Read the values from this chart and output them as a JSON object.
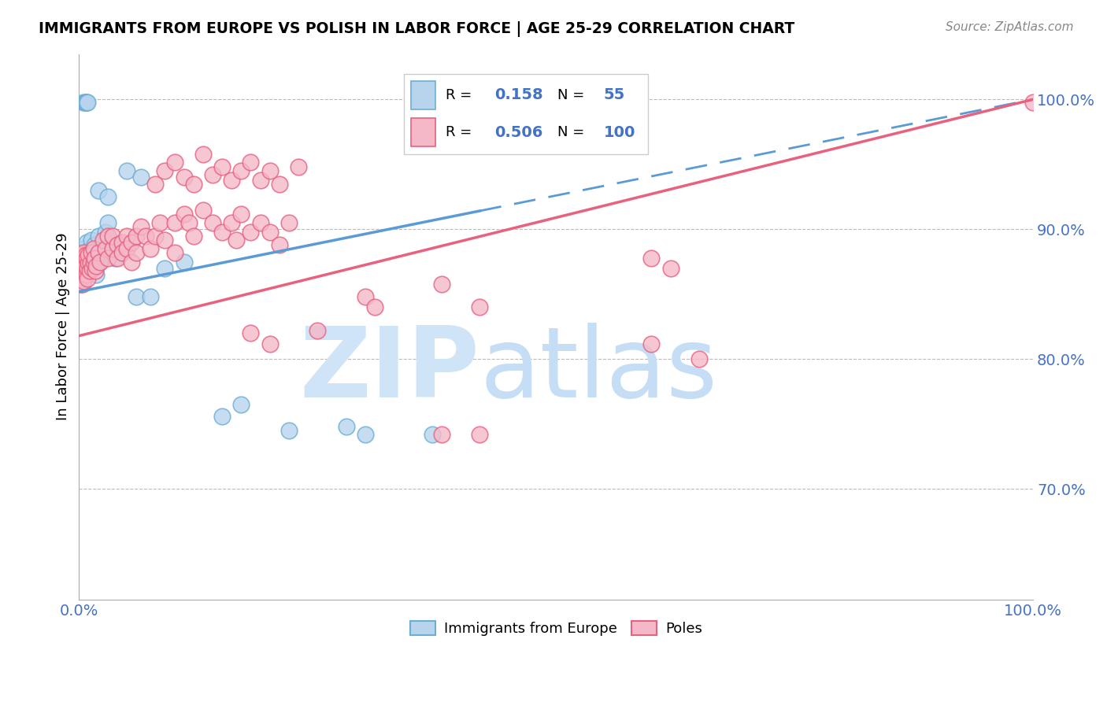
{
  "title": "IMMIGRANTS FROM EUROPE VS POLISH IN LABOR FORCE | AGE 25-29 CORRELATION CHART",
  "source": "Source: ZipAtlas.com",
  "ylabel": "In Labor Force | Age 25-29",
  "r_blue": 0.158,
  "n_blue": 55,
  "r_pink": 0.506,
  "n_pink": 100,
  "blue_face": "#b8d4ed",
  "blue_edge": "#6aaed6",
  "pink_face": "#f4b8c8",
  "pink_edge": "#e8617e",
  "trend_blue_color": "#5b9bd5",
  "trend_pink_color": "#e8617e",
  "watermark_zip_color": "#d0e4f7",
  "watermark_atlas_color": "#c5ddf5",
  "xlim": [
    0.0,
    1.0
  ],
  "ylim": [
    0.615,
    1.035
  ],
  "blue_scatter": [
    [
      0.001,
      0.87
    ],
    [
      0.002,
      0.875
    ],
    [
      0.002,
      0.858
    ],
    [
      0.003,
      0.868
    ],
    [
      0.003,
      0.882
    ],
    [
      0.003,
      0.872
    ],
    [
      0.004,
      0.865
    ],
    [
      0.004,
      0.878
    ],
    [
      0.004,
      0.86
    ],
    [
      0.005,
      0.876
    ],
    [
      0.005,
      0.885
    ],
    [
      0.005,
      0.862
    ],
    [
      0.006,
      0.878
    ],
    [
      0.006,
      0.87
    ],
    [
      0.007,
      0.874
    ],
    [
      0.007,
      0.88
    ],
    [
      0.008,
      0.868
    ],
    [
      0.008,
      0.89
    ],
    [
      0.009,
      0.875
    ],
    [
      0.01,
      0.883
    ],
    [
      0.011,
      0.871
    ],
    [
      0.012,
      0.878
    ],
    [
      0.013,
      0.892
    ],
    [
      0.014,
      0.869
    ],
    [
      0.015,
      0.88
    ],
    [
      0.016,
      0.888
    ],
    [
      0.017,
      0.875
    ],
    [
      0.018,
      0.865
    ],
    [
      0.02,
      0.895
    ],
    [
      0.022,
      0.875
    ],
    [
      0.025,
      0.882
    ],
    [
      0.028,
      0.898
    ],
    [
      0.03,
      0.905
    ],
    [
      0.035,
      0.89
    ],
    [
      0.038,
      0.878
    ],
    [
      0.005,
      0.998
    ],
    [
      0.006,
      0.998
    ],
    [
      0.007,
      0.998
    ],
    [
      0.007,
      0.998
    ],
    [
      0.008,
      0.998
    ],
    [
      0.009,
      0.998
    ],
    [
      0.05,
      0.945
    ],
    [
      0.065,
      0.94
    ],
    [
      0.02,
      0.93
    ],
    [
      0.03,
      0.925
    ],
    [
      0.06,
      0.848
    ],
    [
      0.075,
      0.848
    ],
    [
      0.09,
      0.87
    ],
    [
      0.11,
      0.875
    ],
    [
      0.15,
      0.756
    ],
    [
      0.17,
      0.765
    ],
    [
      0.22,
      0.745
    ],
    [
      0.28,
      0.748
    ],
    [
      0.3,
      0.742
    ],
    [
      0.37,
      0.742
    ]
  ],
  "pink_scatter": [
    [
      0.001,
      0.858
    ],
    [
      0.002,
      0.865
    ],
    [
      0.002,
      0.875
    ],
    [
      0.003,
      0.87
    ],
    [
      0.003,
      0.862
    ],
    [
      0.003,
      0.878
    ],
    [
      0.004,
      0.868
    ],
    [
      0.004,
      0.88
    ],
    [
      0.004,
      0.858
    ],
    [
      0.005,
      0.872
    ],
    [
      0.005,
      0.882
    ],
    [
      0.005,
      0.86
    ],
    [
      0.006,
      0.876
    ],
    [
      0.006,
      0.868
    ],
    [
      0.007,
      0.872
    ],
    [
      0.007,
      0.88
    ],
    [
      0.008,
      0.865
    ],
    [
      0.008,
      0.878
    ],
    [
      0.009,
      0.87
    ],
    [
      0.009,
      0.862
    ],
    [
      0.01,
      0.874
    ],
    [
      0.01,
      0.88
    ],
    [
      0.011,
      0.868
    ],
    [
      0.012,
      0.874
    ],
    [
      0.013,
      0.882
    ],
    [
      0.014,
      0.87
    ],
    [
      0.015,
      0.875
    ],
    [
      0.015,
      0.885
    ],
    [
      0.016,
      0.878
    ],
    [
      0.017,
      0.868
    ],
    [
      0.018,
      0.872
    ],
    [
      0.02,
      0.882
    ],
    [
      0.022,
      0.875
    ],
    [
      0.025,
      0.892
    ],
    [
      0.028,
      0.885
    ],
    [
      0.03,
      0.895
    ],
    [
      0.03,
      0.878
    ],
    [
      0.035,
      0.885
    ],
    [
      0.035,
      0.895
    ],
    [
      0.04,
      0.888
    ],
    [
      0.04,
      0.878
    ],
    [
      0.045,
      0.89
    ],
    [
      0.045,
      0.882
    ],
    [
      0.05,
      0.895
    ],
    [
      0.05,
      0.885
    ],
    [
      0.055,
      0.89
    ],
    [
      0.055,
      0.875
    ],
    [
      0.06,
      0.895
    ],
    [
      0.06,
      0.882
    ],
    [
      0.065,
      0.902
    ],
    [
      0.07,
      0.895
    ],
    [
      0.075,
      0.885
    ],
    [
      0.08,
      0.895
    ],
    [
      0.085,
      0.905
    ],
    [
      0.09,
      0.892
    ],
    [
      0.1,
      0.905
    ],
    [
      0.1,
      0.882
    ],
    [
      0.11,
      0.912
    ],
    [
      0.115,
      0.905
    ],
    [
      0.12,
      0.895
    ],
    [
      0.13,
      0.915
    ],
    [
      0.14,
      0.905
    ],
    [
      0.15,
      0.898
    ],
    [
      0.16,
      0.905
    ],
    [
      0.165,
      0.892
    ],
    [
      0.17,
      0.912
    ],
    [
      0.18,
      0.898
    ],
    [
      0.19,
      0.905
    ],
    [
      0.2,
      0.898
    ],
    [
      0.21,
      0.888
    ],
    [
      0.22,
      0.905
    ],
    [
      0.08,
      0.935
    ],
    [
      0.09,
      0.945
    ],
    [
      0.1,
      0.952
    ],
    [
      0.11,
      0.94
    ],
    [
      0.12,
      0.935
    ],
    [
      0.13,
      0.958
    ],
    [
      0.14,
      0.942
    ],
    [
      0.15,
      0.948
    ],
    [
      0.16,
      0.938
    ],
    [
      0.17,
      0.945
    ],
    [
      0.18,
      0.952
    ],
    [
      0.19,
      0.938
    ],
    [
      0.2,
      0.945
    ],
    [
      0.21,
      0.935
    ],
    [
      0.23,
      0.948
    ],
    [
      0.18,
      0.82
    ],
    [
      0.2,
      0.812
    ],
    [
      0.25,
      0.822
    ],
    [
      0.3,
      0.848
    ],
    [
      0.31,
      0.84
    ],
    [
      0.38,
      0.858
    ],
    [
      0.42,
      0.84
    ],
    [
      0.6,
      0.878
    ],
    [
      0.62,
      0.87
    ],
    [
      0.38,
      0.742
    ],
    [
      0.42,
      0.742
    ],
    [
      0.6,
      0.812
    ],
    [
      0.65,
      0.8
    ],
    [
      1.0,
      0.998
    ]
  ]
}
